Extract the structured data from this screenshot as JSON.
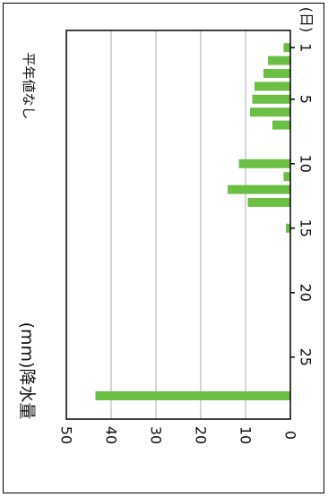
{
  "chart_data": {
    "type": "bar",
    "orientation": "rotated-90",
    "ylabel": "(mm)降水量",
    "xunit": "(日)",
    "note": "平年値なし",
    "ylim": [
      0,
      50
    ],
    "yticks": [
      0,
      10,
      20,
      30,
      40,
      50
    ],
    "xlim": [
      0,
      28
    ],
    "xticks": [
      1,
      5,
      10,
      15,
      20,
      25
    ],
    "grid": true,
    "bar_color": "#6cbf45",
    "days": [
      1,
      2,
      3,
      4,
      5,
      6,
      7,
      10,
      11,
      12,
      13,
      15,
      28
    ],
    "values": [
      1.5,
      5,
      6,
      8,
      8.5,
      9,
      4,
      11.5,
      1.5,
      14,
      9.5,
      1,
      43.5
    ]
  }
}
